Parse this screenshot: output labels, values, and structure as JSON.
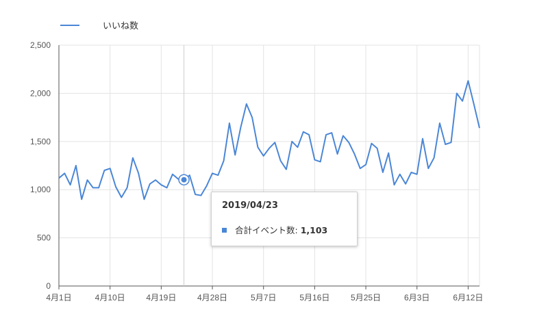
{
  "chart_data": {
    "type": "line",
    "title": "",
    "xlabel": "",
    "ylabel": "",
    "ylim": [
      0,
      2500
    ],
    "yticks": [
      0,
      500,
      1000,
      1500,
      2000,
      2500
    ],
    "ytick_labels": [
      "0",
      "500",
      "1,000",
      "1,500",
      "2,000",
      "2,500"
    ],
    "x_tick_labels": [
      "4月1日",
      "4月10日",
      "4月19日",
      "4月28日",
      "5月7日",
      "5月16日",
      "5月25日",
      "6月3日",
      "6月12日"
    ],
    "x_tick_index": [
      0,
      9,
      18,
      27,
      36,
      45,
      54,
      63,
      72
    ],
    "grid": true,
    "legend": "top-left",
    "series": [
      {
        "name": "いいね数",
        "color": "#4a86d6",
        "values": [
          1120,
          1170,
          1050,
          1250,
          900,
          1100,
          1020,
          1020,
          1200,
          1220,
          1030,
          920,
          1020,
          1330,
          1170,
          900,
          1060,
          1100,
          1050,
          1020,
          1160,
          1110,
          1103,
          1150,
          950,
          940,
          1040,
          1170,
          1150,
          1300,
          1690,
          1360,
          1650,
          1890,
          1750,
          1440,
          1350,
          1430,
          1490,
          1300,
          1210,
          1500,
          1440,
          1600,
          1570,
          1310,
          1290,
          1570,
          1590,
          1370,
          1560,
          1490,
          1370,
          1220,
          1260,
          1480,
          1430,
          1180,
          1380,
          1050,
          1160,
          1060,
          1180,
          1160,
          1530,
          1220,
          1330,
          1690,
          1470,
          1490,
          2000,
          1920,
          2130,
          1890,
          1640
        ]
      }
    ],
    "highlight": {
      "index": 22
    }
  },
  "tooltip": {
    "date": "2019/04/23",
    "series_label": "合計イベント数:",
    "value": "1,103",
    "color": "#4a86d6"
  }
}
